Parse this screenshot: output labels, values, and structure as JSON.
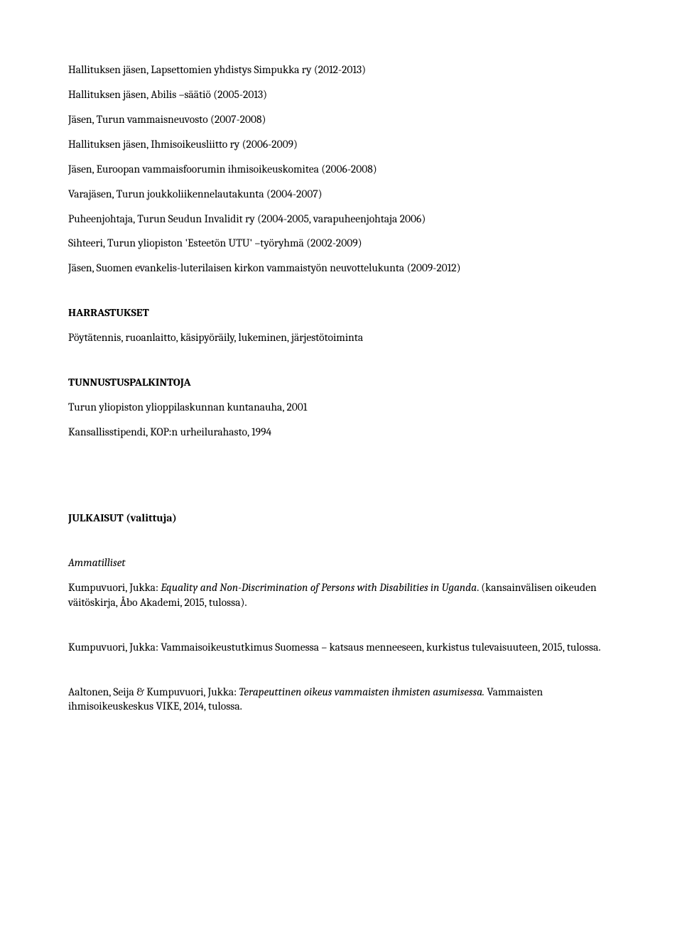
{
  "lines": [
    "Hallituksen jäsen, Lapsettomien yhdistys Simpukka ry (2012-2013)",
    "Hallituksen jäsen, Abilis –säätiö (2005-2013)",
    "Jäsen, Turun vammaisneuvosto (2007-2008)",
    "Hallituksen jäsen, Ihmisoikeusliitto ry (2006-2009)",
    "Jäsen, Euroopan vammaisfoorumin ihmisoikeuskomitea (2006-2008)",
    "Varajäsen, Turun joukkoliikennelautakunta (2004-2007)",
    "Puheenjohtaja, Turun Seudun Invalidit ry (2004-2005, varapuheenjohtaja 2006)",
    "Sihteeri, Turun yliopiston 'Esteetön UTU' –työryhmä (2002-2009)",
    "Jäsen, Suomen evankelis-luterilaisen kirkon vammaistyön neuvottelukunta (2009-2012)"
  ],
  "harrastukset": {
    "heading": "HARRASTUKSET",
    "text": "Pöytätennis, ruoanlaitto, käsipyöräily, lukeminen, järjestötoiminta"
  },
  "tunnustus": {
    "heading": "TUNNUSTUSPALKINTOJA",
    "items": [
      "Turun yliopiston ylioppilaskunnan kuntanauha, 2001",
      "Kansallisstipendi, KOP:n urheilurahasto, 1994"
    ]
  },
  "julkaisut": {
    "heading": "JULKAISUT (valittuja)",
    "subheading": "Ammatilliset",
    "entry1_prefix": "Kumpuvuori, Jukka: ",
    "entry1_italic": "Equality and Non-Discrimination of Persons with Disabilities in Uganda",
    "entry1_suffix": ". (kansainvälisen oikeuden väitöskirja, Åbo Akademi, 2015, tulossa).",
    "entry2": "Kumpuvuori, Jukka: Vammaisoikeustutkimus Suomessa – katsaus menneeseen, kurkistus tulevaisuuteen, 2015, tulossa.",
    "entry3_prefix": "Aaltonen, Seija & Kumpuvuori, Jukka: ",
    "entry3_italic": "Terapeuttinen oikeus vammaisten ihmisten asumisessa.",
    "entry3_suffix": " Vammaisten ihmisoikeuskeskus VIKE, 2014, tulossa."
  }
}
